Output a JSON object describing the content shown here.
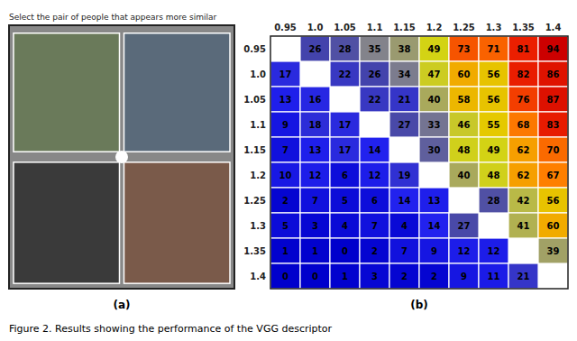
{
  "chart_data": {
    "type": "heatmap",
    "title": "Select the pair of people that appears more similar",
    "categories": [
      "0.95",
      "1.0",
      "1.05",
      "1.1",
      "1.15",
      "1.2",
      "1.25",
      "1.3",
      "1.35",
      "1.4"
    ],
    "values": [
      [
        null,
        26,
        28,
        35,
        38,
        49,
        73,
        71,
        81,
        94
      ],
      [
        17,
        null,
        22,
        26,
        34,
        47,
        60,
        56,
        82,
        86
      ],
      [
        13,
        16,
        null,
        22,
        21,
        40,
        58,
        56,
        76,
        87
      ],
      [
        9,
        18,
        17,
        null,
        27,
        33,
        46,
        55,
        68,
        83
      ],
      [
        7,
        13,
        17,
        14,
        null,
        30,
        48,
        49,
        62,
        70
      ],
      [
        10,
        12,
        6,
        12,
        19,
        null,
        40,
        48,
        62,
        67
      ],
      [
        2,
        7,
        5,
        6,
        14,
        13,
        null,
        28,
        42,
        56
      ],
      [
        5,
        3,
        4,
        7,
        4,
        14,
        27,
        null,
        41,
        60
      ],
      [
        1,
        1,
        0,
        2,
        7,
        9,
        12,
        12,
        null,
        39
      ],
      [
        0,
        0,
        1,
        3,
        2,
        2,
        9,
        11,
        21,
        null
      ]
    ],
    "value_range": [
      0,
      94
    ],
    "data_labels": true,
    "annotations": [
      "(a)",
      "(b)",
      "Figure 2. Results showing the performance of the VGG descriptor"
    ]
  }
}
